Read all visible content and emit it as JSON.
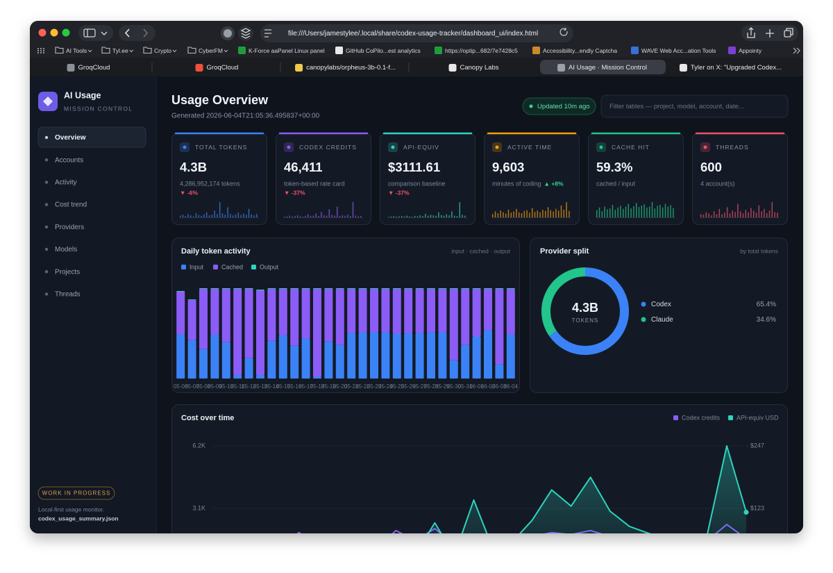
{
  "browser": {
    "url": "file:///Users/jamestylee/.local/share/codex-usage-tracker/dashboard_ui/index.html",
    "bookmarks": [
      "AI Tools",
      "Tyl.ee",
      "Crypto",
      "CyberFM",
      "K-Force aaPanel Linux panel",
      "GitHub CoPilo...est analytics",
      "https://optip...682/7e7428c5",
      "Accessibility...endly Captcha",
      "WAVE Web Acc...ation Tools",
      "Appointy"
    ],
    "tabs": [
      "GroqCloud",
      "GroqCloud",
      "canopylabs/orpheus-3b-0.1-f...",
      "Canopy Labs",
      "AI Usage · Mission Control",
      "Tyler on X: \"Upgraded Codex..."
    ]
  },
  "sidebar": {
    "title": "AI Usage",
    "subtitle": "MISSION CONTROL",
    "nav": [
      "Overview",
      "Accounts",
      "Activity",
      "Cost trend",
      "Providers",
      "Models",
      "Projects",
      "Threads"
    ],
    "badge": "WORK IN PROGRESS",
    "footer": "Local-first usage monitor.",
    "file": "codex_usage_summary.json"
  },
  "header": {
    "title": "Usage Overview",
    "generated": "Generated 2026-06-04T21:05:36.495837+00:00",
    "updated": "Updated 10m ago",
    "filter_placeholder": "Filter tables — project, model, account, date..."
  },
  "kpis": [
    {
      "label": "TOTAL TOKENS",
      "value": "4.3B",
      "sub": "4,286,952,174 tokens",
      "delta": "▼ -6%",
      "delta_color": "#f0506e",
      "color": "#3b82f6",
      "spark": [
        5,
        8,
        4,
        10,
        6,
        3,
        12,
        7,
        5,
        9,
        15,
        6,
        8,
        20,
        10,
        45,
        12,
        8,
        30,
        10,
        6,
        9,
        14,
        7,
        11,
        8,
        25,
        9,
        6,
        10
      ]
    },
    {
      "label": "CODEX CREDITS",
      "value": "46,411",
      "sub": "token-based rate card",
      "delta": "▼ -37%",
      "delta_color": "#f0506e",
      "color": "#8b5cf6",
      "spark": [
        4,
        6,
        10,
        5,
        8,
        12,
        6,
        4,
        9,
        18,
        7,
        10,
        22,
        8,
        30,
        12,
        9,
        45,
        14,
        10,
        60,
        8,
        12,
        9,
        15,
        7,
        85,
        10,
        6,
        8
      ]
    },
    {
      "label": "API-EQUIV",
      "value": "$3111.61",
      "sub": "comparison baseline",
      "delta": "▼ -37%",
      "delta_color": "#f0506e",
      "color": "#2dd4bf",
      "spark": [
        3,
        5,
        7,
        4,
        6,
        8,
        5,
        10,
        6,
        4,
        9,
        7,
        12,
        8,
        20,
        10,
        15,
        12,
        9,
        30,
        14,
        10,
        18,
        12,
        35,
        10,
        8,
        90,
        15,
        10
      ]
    },
    {
      "label": "ACTIVE TIME",
      "value": "9,603",
      "sub": "minutes of coding",
      "delta": "▲ +8%",
      "delta_color": "#34d399",
      "color": "#f59e0b",
      "spark": [
        20,
        35,
        25,
        40,
        30,
        22,
        45,
        28,
        35,
        50,
        30,
        25,
        38,
        42,
        28,
        55,
        33,
        40,
        30,
        45,
        38,
        60,
        42,
        35,
        50,
        40,
        70,
        45,
        90,
        38
      ]
    },
    {
      "label": "CACHE HIT",
      "value": "59.3%",
      "sub": "cached / input",
      "color": "#22c58b",
      "spark": [
        40,
        55,
        35,
        60,
        45,
        50,
        70,
        42,
        55,
        65,
        48,
        60,
        75,
        50,
        62,
        80,
        58,
        66,
        72,
        55,
        60,
        85,
        50,
        65,
        70,
        55,
        75,
        60,
        68,
        52
      ]
    },
    {
      "label": "THREADS",
      "value": "600",
      "sub": "4 account(s)",
      "color": "#f0506e",
      "spark": [
        10,
        8,
        15,
        12,
        6,
        18,
        10,
        25,
        9,
        14,
        30,
        12,
        20,
        16,
        40,
        18,
        12,
        22,
        15,
        28,
        20,
        14,
        35,
        18,
        25,
        12,
        20,
        45,
        16,
        14
      ]
    }
  ],
  "chart_data": [
    {
      "type": "stacked_bar",
      "title": "Daily token activity",
      "subtitle": "input · cached · output",
      "categories": [
        "05-06",
        "05-07",
        "05-08",
        "05-09",
        "05-10",
        "05-11",
        "05-12",
        "05-13",
        "05-14",
        "05-15",
        "05-16",
        "05-17",
        "05-18",
        "05-19",
        "05-20",
        "05-21",
        "05-22",
        "05-23",
        "05-24",
        "05-25",
        "05-26",
        "05-27",
        "05-28",
        "05-29",
        "05-30",
        "05-31",
        "06-01",
        "06-02",
        "06-03",
        "06-04"
      ],
      "series": [
        {
          "name": "Input",
          "color": "#3b82f6",
          "values": [
            63,
            55,
            42,
            63,
            52,
            5,
            29,
            5,
            54,
            62,
            47,
            57,
            3,
            53,
            48,
            65,
            66,
            66,
            66,
            64,
            65,
            65,
            66,
            66,
            26,
            48,
            60,
            69,
            20,
            63
          ]
        },
        {
          "name": "Cached",
          "color": "#8b5cf6",
          "values": [
            61,
            57,
            86,
            65,
            76,
            123,
            99,
            121,
            74,
            66,
            81,
            71,
            125,
            75,
            80,
            63,
            62,
            62,
            62,
            64,
            63,
            63,
            62,
            62,
            102,
            80,
            68,
            59,
            108,
            65
          ]
        },
        {
          "name": "Output",
          "color": "#2dd4bf",
          "values": [
            1,
            1,
            1,
            1,
            1,
            1,
            1,
            1,
            1,
            1,
            1,
            1,
            1,
            1,
            1,
            1,
            1,
            1,
            1,
            1,
            1,
            1,
            1,
            1,
            1,
            1,
            1,
            1,
            1,
            1
          ]
        }
      ]
    },
    {
      "type": "donut",
      "title": "Provider split",
      "subtitle": "by total tokens",
      "center_value": "4.3B",
      "center_label": "TOKENS",
      "categories": [
        "Codex",
        "Claude"
      ],
      "values": [
        65.4,
        34.6
      ],
      "value_labels": [
        "65.4%",
        "34.6%"
      ],
      "colors": [
        "#3b82f6",
        "#22c58b"
      ]
    },
    {
      "type": "line",
      "title": "Cost over time",
      "ylim": [
        0,
        6200
      ],
      "yticks": [
        {
          "value": 6200,
          "label": "6.2K"
        },
        {
          "value": 3100,
          "label": "3.1K"
        }
      ],
      "y2lim": [
        0,
        247
      ],
      "y2ticks": [
        {
          "value": 247,
          "label": "$247"
        },
        {
          "value": 123,
          "label": "$123"
        }
      ],
      "series": [
        {
          "name": "Codex credits",
          "color": "#8b5cf6",
          "values": [
            1200,
            1500,
            900,
            1700,
            1300,
            800,
            1900,
            1400,
            1000,
            1600,
            1100,
            2000,
            1500,
            2100,
            1300,
            1800,
            1400,
            1600,
            1700,
            1900,
            1800,
            2000,
            1700,
            1500,
            1400,
            1300,
            1200,
            1500,
            2300,
            1600
          ]
        },
        {
          "name": "API-equiv USD",
          "color": "#2dd4bf",
          "axis": "y2",
          "values": [
            22,
            35,
            18,
            40,
            28,
            15,
            45,
            30,
            20,
            38,
            25,
            50,
            33,
            95,
            30,
            140,
            42,
            58,
            100,
            160,
            128,
            185,
            118,
            88,
            74,
            62,
            55,
            72,
            247,
            116
          ]
        }
      ]
    }
  ]
}
